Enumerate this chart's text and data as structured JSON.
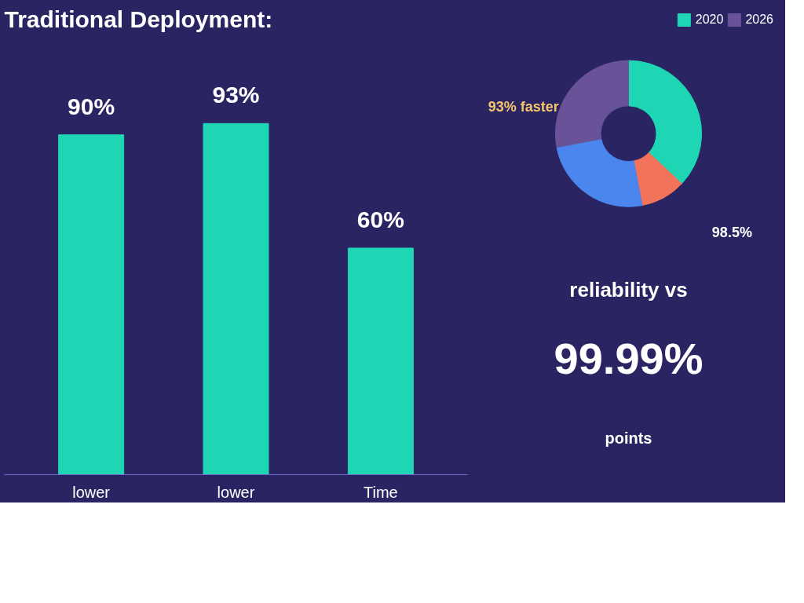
{
  "chart_data": [
    {
      "type": "bar",
      "title": "Traditional Deployment:",
      "categories": [
        "lower",
        "lower",
        "Time"
      ],
      "values": [
        90,
        93,
        60
      ],
      "tick_labels": "x",
      "value_labels": [
        "90%",
        "93%",
        "60%"
      ],
      "color": "#1ed6b4"
    },
    {
      "type": "donut",
      "categories": [
        "2020",
        null,
        null,
        "2026"
      ],
      "values": [
        37,
        10,
        25,
        28
      ],
      "colors": [
        "#1ed6b4",
        "#f2735a",
        "#4a86ee",
        "#6a5298"
      ],
      "legend": "top right",
      "annotations": [
        "93% faster",
        "98.5%"
      ]
    },
    {
      "type": "other",
      "annotations": [
        "reliability vs",
        "99.99%",
        "points"
      ]
    }
  ]
}
